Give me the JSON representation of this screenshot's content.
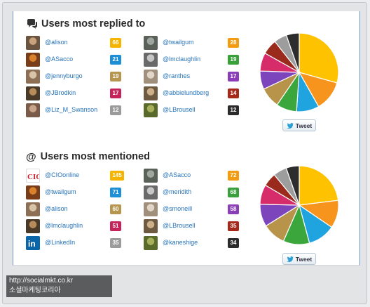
{
  "replied": {
    "title": "Users most replied to",
    "tweet_label": "Tweet",
    "left": [
      {
        "handle": "@alison",
        "count": "66",
        "color": "#f4b400"
      },
      {
        "handle": "@ASacco",
        "count": "21",
        "color": "#1d8fd6"
      },
      {
        "handle": "@jennyburgo",
        "count": "19",
        "color": "#b7954e"
      },
      {
        "handle": "@JBrodkin",
        "count": "17",
        "color": "#c5245a"
      },
      {
        "handle": "@Liz_M_Swanson",
        "count": "12",
        "color": "#9b9b9b"
      }
    ],
    "right": [
      {
        "handle": "@twailgum",
        "count": "28",
        "color": "#f39c12"
      },
      {
        "handle": "@lmclaughlin",
        "count": "19",
        "color": "#39a03c"
      },
      {
        "handle": "@ranthes",
        "count": "17",
        "color": "#8a3fb8"
      },
      {
        "handle": "@abbielundberg",
        "count": "14",
        "color": "#a8271b"
      },
      {
        "handle": "@LBrousell",
        "count": "12",
        "color": "#2b2b2b"
      }
    ]
  },
  "mentioned": {
    "title": "Users most mentioned",
    "tweet_label": "Tweet",
    "left": [
      {
        "handle": "@CIOonline",
        "count": "145",
        "color": "#f4b400"
      },
      {
        "handle": "@twailgum",
        "count": "71",
        "color": "#1d8fd6"
      },
      {
        "handle": "@alison",
        "count": "60",
        "color": "#b7954e"
      },
      {
        "handle": "@lmclaughlin",
        "count": "51",
        "color": "#c5245a"
      },
      {
        "handle": "@LinkedIn",
        "count": "35",
        "color": "#9b9b9b"
      }
    ],
    "right": [
      {
        "handle": "@ASacco",
        "count": "72",
        "color": "#f39c12"
      },
      {
        "handle": "@meridith",
        "count": "68",
        "color": "#39a03c"
      },
      {
        "handle": "@smoneill",
        "count": "58",
        "color": "#8a3fb8"
      },
      {
        "handle": "@LBrousell",
        "count": "35",
        "color": "#a8271b"
      },
      {
        "handle": "@kaneshige",
        "count": "34",
        "color": "#2b2b2b"
      }
    ]
  },
  "chart_data": [
    {
      "type": "pie",
      "series": [
        {
          "values": [
            66,
            28,
            21,
            19,
            19,
            17,
            17,
            14,
            12,
            12
          ]
        }
      ],
      "colors": [
        "#fec200",
        "#f7941d",
        "#1fa4df",
        "#3aa63c",
        "#b8934a",
        "#7d45bb",
        "#d62c6a",
        "#9a2a1c",
        "#9d9d9d",
        "#2d2d2d"
      ]
    },
    {
      "type": "pie",
      "series": [
        {
          "values": [
            145,
            72,
            71,
            68,
            60,
            58,
            51,
            35,
            35,
            34
          ]
        }
      ],
      "colors": [
        "#fec200",
        "#f7941d",
        "#1fa4df",
        "#3aa63c",
        "#b8934a",
        "#7d45bb",
        "#d62c6a",
        "#9a2a1c",
        "#9d9d9d",
        "#2d2d2d"
      ]
    }
  ],
  "watermark": {
    "line1": "http://socialmkt.co.kr",
    "line2": "소셜마케팅코리아"
  }
}
